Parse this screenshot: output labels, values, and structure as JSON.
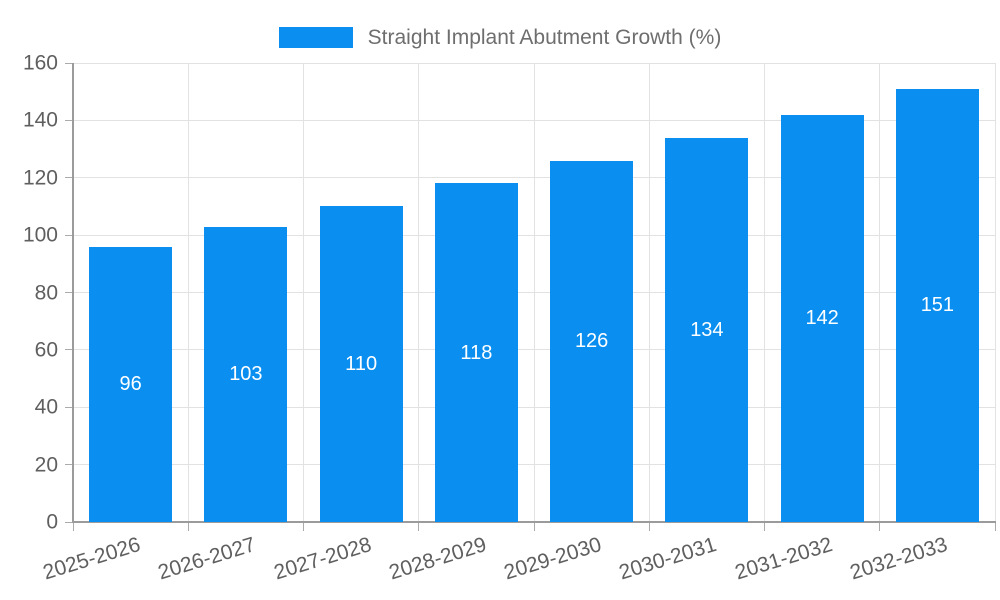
{
  "legend": {
    "label": "Straight Implant Abutment Growth (%)"
  },
  "chart_data": {
    "type": "bar",
    "title": "Straight Implant Abutment Growth (%)",
    "categories": [
      "2025-2026",
      "2026-2027",
      "2027-2028",
      "2028-2029",
      "2029-2030",
      "2030-2031",
      "2031-2032",
      "2032-2033"
    ],
    "values": [
      96,
      103,
      110,
      118,
      126,
      134,
      142,
      151
    ],
    "xlabel": "",
    "ylabel": "",
    "ylim": [
      0,
      160
    ],
    "ytick_step": 20,
    "ytick_labels": [
      "0",
      "20",
      "40",
      "60",
      "80",
      "100",
      "120",
      "140",
      "160"
    ],
    "grid": true,
    "legend_position": "top",
    "bar_color": "#0a8ff0",
    "value_label_color": "#ffffff",
    "axis_text_color": "#5f5f5f",
    "legend_text_color": "#6e6e6e",
    "gridline_color": "#e2e2e2",
    "axis_line_color": "#9b9b9b"
  }
}
